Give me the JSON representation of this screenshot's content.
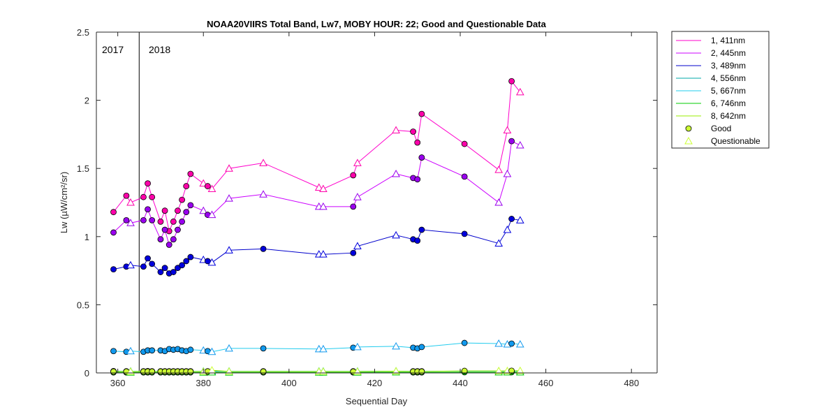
{
  "chart_data": {
    "type": "line",
    "title": "NOAA20VIIRS Total Band,  Lw7, MOBY HOUR: 22;  Good and Questionable Data",
    "xlabel": "Sequential Day",
    "ylabel": "Lw (µW/cm²/sr)",
    "xlim": [
      355,
      486
    ],
    "ylim": [
      0,
      2.5
    ],
    "xticks": [
      360,
      380,
      400,
      420,
      440,
      460,
      480
    ],
    "yticks": [
      0,
      0.5,
      1,
      1.5,
      2,
      2.5
    ],
    "year_divider_x": 365,
    "year_labels": [
      "2017",
      "2018"
    ],
    "grid": false,
    "legend_position": "outside-right",
    "legend_markers": [
      {
        "name": "Good",
        "marker": "circle",
        "color": "#ccff33"
      },
      {
        "name": "Questionable",
        "marker": "triangle",
        "color": "#ccff33"
      }
    ],
    "series": [
      {
        "name": "1, 411nm",
        "color": "#ff00cc",
        "marker_color": "#ff00aa",
        "x": [
          359,
          362,
          363,
          366,
          367,
          368,
          370,
          371,
          372,
          373,
          374,
          375,
          376,
          377,
          380,
          381,
          382,
          386,
          394,
          407,
          408,
          415,
          416,
          425,
          429,
          430,
          431,
          441,
          449,
          451,
          452,
          454
        ],
        "y": [
          1.18,
          1.3,
          1.25,
          1.29,
          1.39,
          1.29,
          1.11,
          1.19,
          1.04,
          1.11,
          1.19,
          1.27,
          1.37,
          1.46,
          1.39,
          1.37,
          1.35,
          1.5,
          1.54,
          1.36,
          1.35,
          1.45,
          1.54,
          1.78,
          1.77,
          1.69,
          1.9,
          1.68,
          1.49,
          1.78,
          2.14,
          2.06
        ],
        "q": [
          "g",
          "g",
          "q",
          "g",
          "g",
          "g",
          "g",
          "g",
          "g",
          "g",
          "g",
          "g",
          "g",
          "g",
          "q",
          "g",
          "q",
          "q",
          "q",
          "q",
          "q",
          "g",
          "q",
          "q",
          "g",
          "g",
          "g",
          "g",
          "q",
          "q",
          "g",
          "q"
        ]
      },
      {
        "name": "2, 445nm",
        "color": "#cc00ff",
        "marker_color": "#9900ee",
        "x": [
          359,
          362,
          363,
          366,
          367,
          368,
          370,
          371,
          372,
          373,
          374,
          375,
          376,
          377,
          380,
          381,
          382,
          386,
          394,
          407,
          408,
          415,
          416,
          425,
          429,
          430,
          431,
          441,
          449,
          451,
          452,
          454
        ],
        "y": [
          1.03,
          1.12,
          1.1,
          1.12,
          1.2,
          1.12,
          0.98,
          1.05,
          0.94,
          0.98,
          1.05,
          1.11,
          1.18,
          1.23,
          1.19,
          1.16,
          1.16,
          1.28,
          1.31,
          1.22,
          1.22,
          1.22,
          1.29,
          1.46,
          1.43,
          1.42,
          1.58,
          1.44,
          1.25,
          1.46,
          1.7,
          1.67
        ],
        "q": [
          "g",
          "g",
          "q",
          "g",
          "g",
          "g",
          "g",
          "g",
          "g",
          "g",
          "g",
          "g",
          "g",
          "g",
          "q",
          "g",
          "q",
          "q",
          "q",
          "q",
          "q",
          "g",
          "q",
          "q",
          "g",
          "g",
          "g",
          "g",
          "q",
          "q",
          "g",
          "q"
        ]
      },
      {
        "name": "3, 489nm",
        "color": "#0000cc",
        "marker_color": "#0000dd",
        "x": [
          359,
          362,
          363,
          366,
          367,
          368,
          370,
          371,
          372,
          373,
          374,
          375,
          376,
          377,
          380,
          381,
          382,
          386,
          394,
          407,
          408,
          415,
          416,
          425,
          429,
          430,
          431,
          441,
          449,
          451,
          452,
          454
        ],
        "y": [
          0.76,
          0.78,
          0.79,
          0.78,
          0.84,
          0.8,
          0.74,
          0.77,
          0.73,
          0.74,
          0.77,
          0.79,
          0.82,
          0.85,
          0.83,
          0.82,
          0.81,
          0.9,
          0.91,
          0.87,
          0.87,
          0.88,
          0.93,
          1.01,
          0.98,
          0.97,
          1.05,
          1.02,
          0.95,
          1.05,
          1.13,
          1.12
        ],
        "q": [
          "g",
          "g",
          "q",
          "g",
          "g",
          "g",
          "g",
          "g",
          "g",
          "g",
          "g",
          "g",
          "g",
          "g",
          "q",
          "g",
          "q",
          "q",
          "g",
          "q",
          "q",
          "g",
          "q",
          "q",
          "g",
          "g",
          "g",
          "g",
          "q",
          "q",
          "g",
          "q"
        ]
      },
      {
        "name": "4, 556nm",
        "color": "#00aaaa",
        "marker_color": "#00aaaa",
        "x": [
          359,
          362,
          363,
          366,
          367,
          368,
          370,
          371,
          372,
          373,
          374,
          375,
          376,
          377,
          380,
          381,
          382,
          386,
          394,
          407,
          408,
          415,
          416,
          425,
          429,
          430,
          431,
          441,
          449,
          451,
          452,
          454
        ],
        "y": [
          0.013,
          0.012,
          0.012,
          0.012,
          0.013,
          0.012,
          0.012,
          0.012,
          0.012,
          0.012,
          0.012,
          0.012,
          0.012,
          0.012,
          0.012,
          0.012,
          0.013,
          0.012,
          0.012,
          0.012,
          0.012,
          0.012,
          0.012,
          0.013,
          0.012,
          0.012,
          0.012,
          0.013,
          0.013,
          0.013,
          0.013,
          0.013
        ],
        "q": [
          "g",
          "g",
          "q",
          "g",
          "g",
          "g",
          "g",
          "g",
          "g",
          "g",
          "g",
          "g",
          "g",
          "g",
          "q",
          "g",
          "q",
          "q",
          "g",
          "q",
          "q",
          "g",
          "q",
          "q",
          "g",
          "g",
          "g",
          "g",
          "q",
          "q",
          "g",
          "q"
        ]
      },
      {
        "name": "5, 667nm",
        "color": "#22ccee",
        "marker_color": "#1199ee",
        "x": [
          359,
          362,
          363,
          366,
          367,
          368,
          370,
          371,
          372,
          373,
          374,
          375,
          376,
          377,
          380,
          381,
          382,
          386,
          394,
          407,
          408,
          415,
          416,
          425,
          429,
          430,
          431,
          441,
          449,
          451,
          452,
          454
        ],
        "y": [
          0.16,
          0.155,
          0.16,
          0.155,
          0.165,
          0.165,
          0.165,
          0.16,
          0.175,
          0.17,
          0.175,
          0.165,
          0.16,
          0.17,
          0.165,
          0.16,
          0.155,
          0.18,
          0.18,
          0.175,
          0.175,
          0.185,
          0.19,
          0.195,
          0.185,
          0.18,
          0.19,
          0.22,
          0.215,
          0.21,
          0.215,
          0.21
        ],
        "q": [
          "g",
          "g",
          "q",
          "g",
          "g",
          "g",
          "g",
          "g",
          "g",
          "g",
          "g",
          "g",
          "g",
          "g",
          "q",
          "g",
          "q",
          "q",
          "g",
          "q",
          "q",
          "g",
          "q",
          "q",
          "g",
          "g",
          "g",
          "g",
          "q",
          "q",
          "g",
          "q"
        ]
      },
      {
        "name": "6, 746nm",
        "color": "#00cc00",
        "marker_color": "#00cc00",
        "x": [
          359,
          362,
          363,
          366,
          367,
          368,
          370,
          371,
          372,
          373,
          374,
          375,
          376,
          377,
          380,
          381,
          382,
          386,
          394,
          407,
          408,
          415,
          416,
          425,
          429,
          430,
          431,
          441,
          449,
          451,
          452,
          454
        ],
        "y": [
          0.004,
          0.004,
          0.004,
          0.004,
          0.004,
          0.004,
          0.004,
          0.004,
          0.004,
          0.004,
          0.004,
          0.004,
          0.004,
          0.004,
          0.004,
          0.004,
          0.005,
          0.004,
          0.004,
          0.004,
          0.004,
          0.004,
          0.004,
          0.005,
          0.004,
          0.004,
          0.004,
          0.005,
          0.005,
          0.005,
          0.005,
          0.005
        ],
        "q": [
          "g",
          "g",
          "q",
          "g",
          "g",
          "g",
          "g",
          "g",
          "g",
          "g",
          "g",
          "g",
          "g",
          "g",
          "q",
          "g",
          "q",
          "q",
          "g",
          "q",
          "q",
          "g",
          "q",
          "q",
          "g",
          "g",
          "g",
          "g",
          "q",
          "q",
          "g",
          "q"
        ]
      },
      {
        "name": "8, 642nm",
        "color": "#99ee00",
        "marker_color": "#ccff33",
        "x": [
          359,
          362,
          363,
          366,
          367,
          368,
          370,
          371,
          372,
          373,
          374,
          375,
          376,
          377,
          380,
          381,
          382,
          386,
          394,
          407,
          408,
          415,
          416,
          425,
          429,
          430,
          431,
          441,
          449,
          451,
          452,
          454
        ],
        "y": [
          0.01,
          0.01,
          0.01,
          0.01,
          0.01,
          0.01,
          0.01,
          0.01,
          0.01,
          0.01,
          0.01,
          0.01,
          0.01,
          0.01,
          0.01,
          0.011,
          0.02,
          0.011,
          0.01,
          0.01,
          0.01,
          0.01,
          0.01,
          0.013,
          0.01,
          0.01,
          0.01,
          0.015,
          0.015,
          0.015,
          0.016,
          0.016
        ],
        "q": [
          "g",
          "g",
          "q",
          "g",
          "g",
          "g",
          "g",
          "g",
          "g",
          "g",
          "g",
          "g",
          "g",
          "g",
          "q",
          "g",
          "q",
          "q",
          "g",
          "q",
          "q",
          "g",
          "q",
          "q",
          "g",
          "g",
          "g",
          "g",
          "q",
          "q",
          "g",
          "q"
        ]
      }
    ]
  }
}
